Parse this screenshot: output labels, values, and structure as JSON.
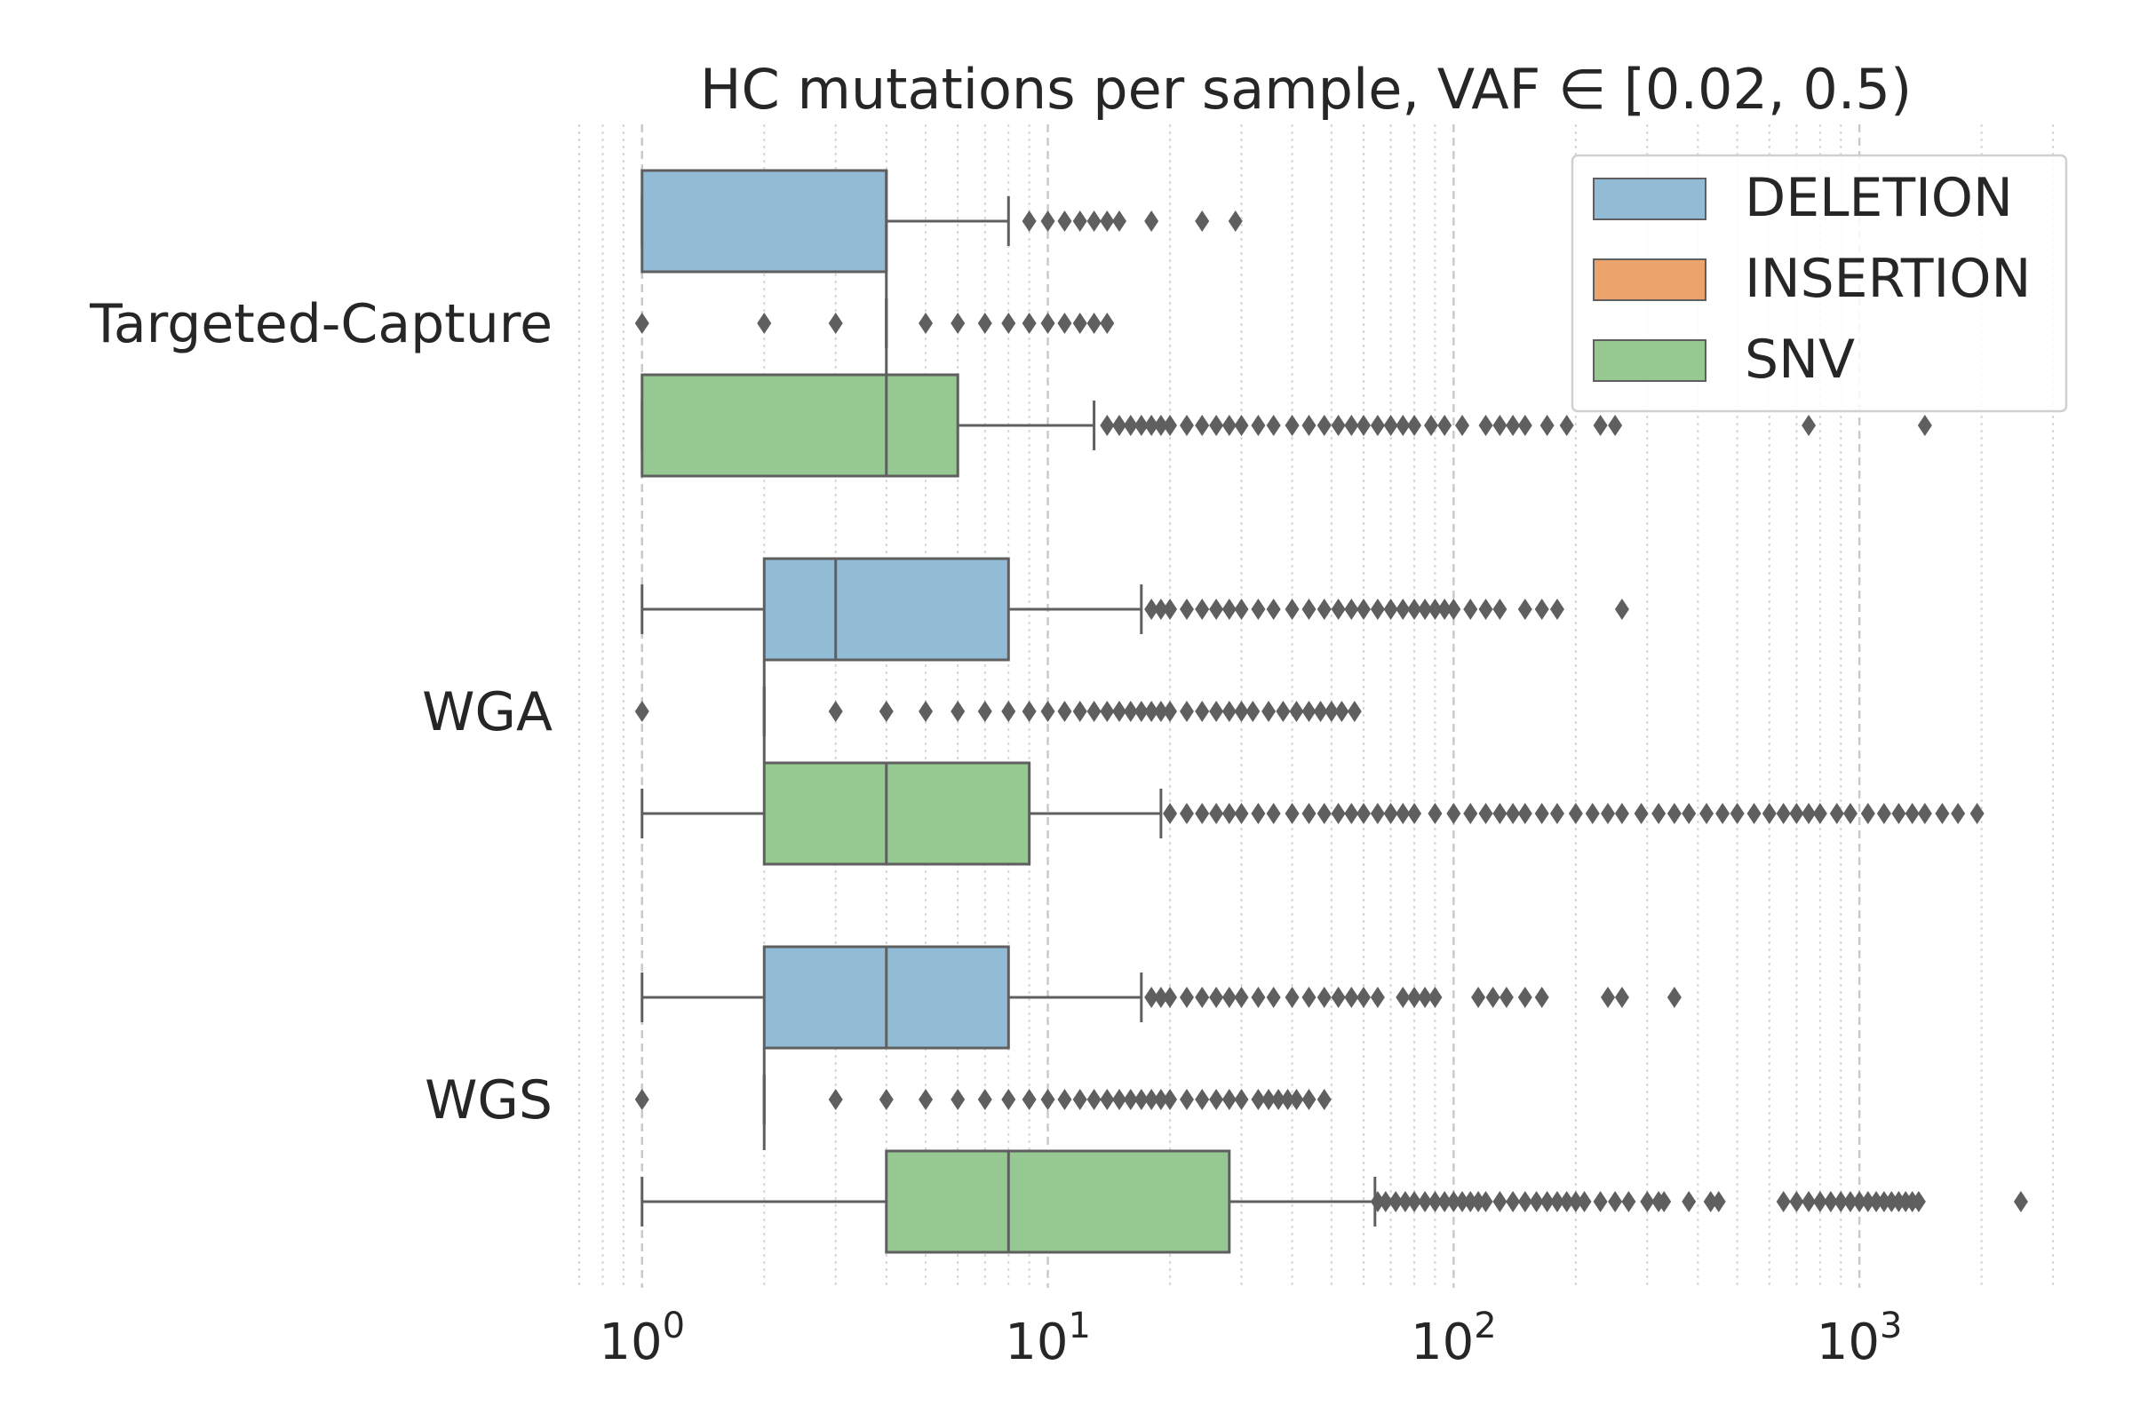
{
  "chart_data": {
    "type": "boxplot",
    "orientation": "horizontal",
    "title": "HC mutations per sample, VAF ∈ [0.02, 0.5)",
    "xlabel": "",
    "ylabel": "",
    "x_scale": "log",
    "xlim": [
      0.7,
      3300
    ],
    "x_ticks": [
      {
        "value": 1,
        "base": "10",
        "exp": "0"
      },
      {
        "value": 10,
        "base": "10",
        "exp": "1"
      },
      {
        "value": 100,
        "base": "10",
        "exp": "2"
      },
      {
        "value": 1000,
        "base": "10",
        "exp": "3"
      }
    ],
    "grid": "vertical dashed major and dotted minor",
    "legend_position": "top-right",
    "categories": [
      "Targeted-Capture",
      "WGA",
      "WGS"
    ],
    "series": [
      {
        "name": "DELETION",
        "color": "#92bcd6"
      },
      {
        "name": "INSERTION",
        "color": "#eda46c"
      },
      {
        "name": "SNV",
        "color": "#95c991"
      }
    ],
    "boxes": [
      {
        "category": "Targeted-Capture",
        "series": "DELETION",
        "whisker_low": 1,
        "q1": 1,
        "median": 4,
        "q3": 4,
        "whisker_high": 8,
        "outliers": [
          9,
          10,
          11,
          12,
          13,
          14,
          15,
          18,
          24,
          29
        ]
      },
      {
        "category": "Targeted-Capture",
        "series": "INSERTION",
        "whisker_low": 4,
        "q1": 4,
        "median": 4,
        "q3": 4,
        "whisker_high": 4,
        "outliers": [
          1,
          2,
          3,
          5,
          6,
          7,
          8,
          9,
          10,
          11,
          12,
          13,
          14
        ]
      },
      {
        "category": "Targeted-Capture",
        "series": "SNV",
        "whisker_low": 1,
        "q1": 1,
        "median": 4,
        "q3": 6,
        "whisker_high": 13,
        "outliers": [
          14,
          15,
          16,
          17,
          18,
          19,
          20,
          22,
          24,
          26,
          28,
          30,
          33,
          36,
          40,
          44,
          48,
          52,
          56,
          60,
          65,
          70,
          75,
          80,
          88,
          95,
          105,
          120,
          130,
          140,
          150,
          170,
          190,
          230,
          250,
          750,
          1450
        ]
      },
      {
        "category": "WGA",
        "series": "DELETION",
        "whisker_low": 1,
        "q1": 2,
        "median": 3,
        "q3": 8,
        "whisker_high": 17,
        "outliers": [
          18,
          19,
          20,
          22,
          24,
          26,
          28,
          30,
          33,
          36,
          40,
          44,
          48,
          52,
          56,
          60,
          65,
          70,
          75,
          80,
          85,
          90,
          95,
          100,
          110,
          120,
          130,
          150,
          165,
          180,
          260
        ]
      },
      {
        "category": "WGA",
        "series": "INSERTION",
        "whisker_low": 2,
        "q1": 2,
        "median": 2,
        "q3": 2,
        "whisker_high": 2,
        "outliers": [
          1,
          3,
          4,
          5,
          6,
          7,
          8,
          9,
          10,
          11,
          12,
          13,
          14,
          15,
          16,
          17,
          18,
          19,
          20,
          22,
          24,
          26,
          28,
          30,
          32,
          35,
          38,
          41,
          44,
          47,
          50,
          53,
          57
        ]
      },
      {
        "category": "WGA",
        "series": "SNV",
        "whisker_low": 1,
        "q1": 2,
        "median": 4,
        "q3": 9,
        "whisker_high": 19,
        "outliers": [
          20,
          22,
          24,
          26,
          28,
          30,
          33,
          36,
          40,
          44,
          48,
          52,
          56,
          60,
          65,
          70,
          75,
          80,
          90,
          100,
          110,
          120,
          130,
          140,
          150,
          165,
          180,
          200,
          220,
          240,
          260,
          290,
          320,
          350,
          380,
          420,
          460,
          500,
          550,
          600,
          650,
          700,
          750,
          800,
          880,
          950,
          1050,
          1150,
          1250,
          1350,
          1450,
          1600,
          1750,
          1950
        ]
      },
      {
        "category": "WGS",
        "series": "DELETION",
        "whisker_low": 1,
        "q1": 2,
        "median": 4,
        "q3": 8,
        "whisker_high": 17,
        "outliers": [
          18,
          19,
          20,
          22,
          24,
          26,
          28,
          30,
          33,
          36,
          40,
          44,
          48,
          52,
          56,
          60,
          65,
          75,
          80,
          85,
          90,
          115,
          125,
          135,
          150,
          165,
          240,
          260,
          350
        ]
      },
      {
        "category": "WGS",
        "series": "INSERTION",
        "whisker_low": 2,
        "q1": 2,
        "median": 2,
        "q3": 2,
        "whisker_high": 2,
        "outliers": [
          1,
          3,
          4,
          5,
          6,
          7,
          8,
          9,
          10,
          11,
          12,
          13,
          14,
          15,
          16,
          17,
          18,
          19,
          20,
          22,
          24,
          26,
          28,
          30,
          33,
          35,
          37,
          39,
          41,
          44,
          48
        ]
      },
      {
        "category": "WGS",
        "series": "SNV",
        "whisker_low": 1,
        "q1": 4,
        "median": 8,
        "q3": 28,
        "whisker_high": 64,
        "outliers": [
          65,
          68,
          72,
          76,
          80,
          85,
          90,
          95,
          100,
          105,
          110,
          115,
          120,
          130,
          140,
          150,
          160,
          170,
          180,
          190,
          200,
          210,
          230,
          250,
          270,
          300,
          320,
          330,
          380,
          430,
          450,
          650,
          700,
          750,
          800,
          850,
          900,
          950,
          1000,
          1050,
          1100,
          1150,
          1200,
          1250,
          1300,
          1350,
          1400,
          2500
        ]
      }
    ]
  }
}
